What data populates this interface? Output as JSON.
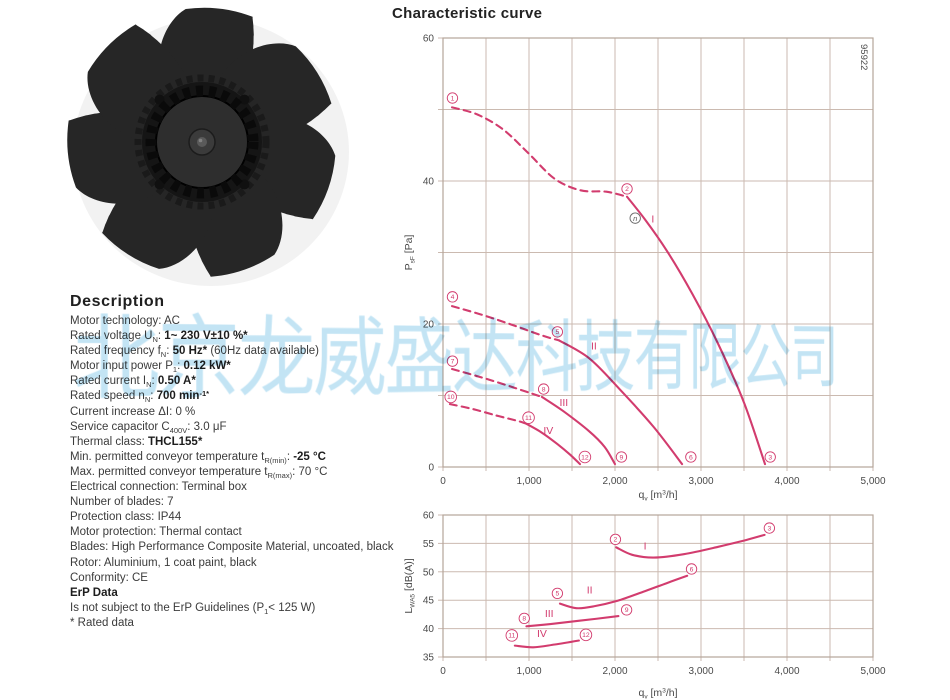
{
  "title": "Characteristic curve",
  "watermark": {
    "text": "北京龙威盛达科技有限公司",
    "color": "#9ed4ee"
  },
  "product_image": {
    "name": "axial-fan-impeller",
    "blades": 7,
    "blade_color": "#262626"
  },
  "description": {
    "heading": "Description",
    "lines": [
      [
        {
          "t": "Motor technology: AC"
        }
      ],
      [
        {
          "t": "Rated voltage U"
        },
        {
          "t": "N",
          "sub": true
        },
        {
          "t": ": "
        },
        {
          "t": "1~ 230 V±10 %*",
          "b": true
        }
      ],
      [
        {
          "t": "Rated frequency f"
        },
        {
          "t": "N",
          "sub": true
        },
        {
          "t": ": "
        },
        {
          "t": "50 Hz*",
          "b": true
        },
        {
          "t": " (60Hz data available)"
        }
      ],
      [
        {
          "t": "Motor input power P"
        },
        {
          "t": "1",
          "sub": true
        },
        {
          "t": ": "
        },
        {
          "t": "0.12 kW*",
          "b": true
        }
      ],
      [
        {
          "t": "Rated current I"
        },
        {
          "t": "N",
          "sub": true
        },
        {
          "t": ": "
        },
        {
          "t": "0.50 A*",
          "b": true
        }
      ],
      [
        {
          "t": "Rated speed n"
        },
        {
          "t": "N",
          "sub": true
        },
        {
          "t": ": "
        },
        {
          "t": "700 min",
          "b": true
        },
        {
          "t": "-1*",
          "b": true,
          "sup": true
        }
      ],
      [
        {
          "t": "Current increase ΔI: 0 %"
        }
      ],
      [
        {
          "t": "Service capacitor C"
        },
        {
          "t": "400V",
          "sub": true
        },
        {
          "t": ": 3.0 μF"
        }
      ],
      [
        {
          "t": "Thermal class: "
        },
        {
          "t": "THCL155*",
          "b": true
        }
      ],
      [
        {
          "t": "Min. permitted conveyor temperature t"
        },
        {
          "t": "R(min)",
          "sub": true
        },
        {
          "t": ": "
        },
        {
          "t": "-25 °C",
          "b": true
        }
      ],
      [
        {
          "t": "Max. permitted conveyor temperature t"
        },
        {
          "t": "R(max)",
          "sub": true
        },
        {
          "t": ": 70 °C"
        }
      ],
      [
        {
          "t": "Electrical connection: Terminal box"
        }
      ],
      [
        {
          "t": "Number of blades: 7"
        }
      ],
      [
        {
          "t": "Protection class: IP44"
        }
      ],
      [
        {
          "t": "Motor protection: Thermal contact"
        }
      ],
      [
        {
          "t": "Blades: High Performance Composite Material, uncoated, black"
        }
      ],
      [
        {
          "t": "Rotor: Aluminium, 1 coat paint, black"
        }
      ],
      [
        {
          "t": "Conformity: CE"
        }
      ],
      [
        {
          "t": "ErP Data",
          "b": true
        }
      ],
      [
        {
          "t": "Is not subject to the ErP Guidelines (P"
        },
        {
          "t": "1",
          "sub": true
        },
        {
          "t": "< 125 W)"
        }
      ],
      [
        {
          "t": "* Rated data"
        }
      ]
    ]
  },
  "colors": {
    "curve": "#d23c6e",
    "grid": "#cbbab0",
    "border": "#b5a59a",
    "text": "#4a4a4a"
  },
  "chart_data": [
    {
      "type": "line",
      "id": "pressure",
      "corner_label": "95922",
      "ylabel_segments": [
        {
          "t": "P"
        },
        {
          "t": "sF",
          "sub": true
        },
        {
          "t": " [Pa]"
        }
      ],
      "xlabel_segments": [
        {
          "t": "q"
        },
        {
          "t": "v",
          "sub": true
        },
        {
          "t": " [m"
        },
        {
          "t": "3",
          "sup": true
        },
        {
          "t": "/h]"
        }
      ],
      "xlim": [
        0,
        5000
      ],
      "ylim": [
        0,
        60
      ],
      "x_grid_step": 500,
      "y_grid_step": 10,
      "x_major_ticks": [
        {
          "v": 0,
          "label": "0"
        },
        {
          "v": 1000,
          "label": "1,000"
        },
        {
          "v": 2000,
          "label": "2,000"
        },
        {
          "v": 3000,
          "label": "3,000"
        },
        {
          "v": 4000,
          "label": "4,000"
        },
        {
          "v": 5000,
          "label": "5,000"
        }
      ],
      "y_major_ticks": [
        {
          "v": 0,
          "label": "0"
        },
        {
          "v": 20,
          "label": "20"
        },
        {
          "v": 40,
          "label": "40"
        },
        {
          "v": 60,
          "label": "60"
        }
      ],
      "curves": [
        {
          "name": "I",
          "label_pos": [
            2440,
            34.2
          ],
          "dashed": [
            [
              105,
              50.3
            ],
            [
              400,
              49.3
            ],
            [
              700,
              47.2
            ],
            [
              1000,
              43.8
            ],
            [
              1300,
              40.3
            ],
            [
              1600,
              38.7
            ],
            [
              1900,
              38.5
            ],
            [
              2140,
              37.8
            ]
          ],
          "solid": [
            [
              2140,
              37.8
            ],
            [
              2350,
              34.6
            ],
            [
              2600,
              30.3
            ],
            [
              2900,
              24.2
            ],
            [
              3200,
              17.2
            ],
            [
              3500,
              9.0
            ],
            [
              3744,
              0.4
            ]
          ],
          "markers": [
            {
              "n": "1",
              "pos": [
                110,
                51.6
              ]
            },
            {
              "n": "2",
              "pos": [
                2140,
                38.9
              ]
            },
            {
              "n": "3",
              "pos": [
                3805,
                1.4
              ]
            }
          ],
          "special_marker": {
            "glyph": "n",
            "pos": [
              2235,
              34.8
            ]
          }
        },
        {
          "name": "II",
          "label_pos": [
            1755,
            16.4
          ],
          "dashed": [
            [
              105,
              22.5
            ],
            [
              450,
              21.3
            ],
            [
              800,
              19.9
            ],
            [
              1150,
              18.4
            ],
            [
              1350,
              17.7
            ]
          ],
          "solid": [
            [
              1350,
              17.7
            ],
            [
              1700,
              15.2
            ],
            [
              2060,
              10.8
            ],
            [
              2450,
              5.6
            ],
            [
              2780,
              0.4
            ]
          ],
          "markers": [
            {
              "n": "4",
              "pos": [
                110,
                23.8
              ]
            },
            {
              "n": "5",
              "pos": [
                1330,
                18.9
              ]
            },
            {
              "n": "6",
              "pos": [
                2882,
                1.4
              ]
            }
          ]
        },
        {
          "name": "III",
          "label_pos": [
            1405,
            8.5
          ],
          "dashed": [
            [
              105,
              13.7
            ],
            [
              400,
              12.7
            ],
            [
              700,
              11.6
            ],
            [
              1000,
              10.4
            ],
            [
              1150,
              9.8
            ]
          ],
          "solid": [
            [
              1150,
              9.8
            ],
            [
              1400,
              7.8
            ],
            [
              1700,
              5.0
            ],
            [
              1880,
              2.8
            ],
            [
              2000,
              0.4
            ]
          ],
          "markers": [
            {
              "n": "7",
              "pos": [
                110,
                14.8
              ]
            },
            {
              "n": "8",
              "pos": [
                1170,
                10.9
              ]
            },
            {
              "n": "9",
              "pos": [
                2075,
                1.4
              ]
            }
          ]
        },
        {
          "name": "IV",
          "label_pos": [
            1225,
            4.6
          ],
          "dashed": [
            [
              81,
              8.8
            ],
            [
              350,
              8.1
            ],
            [
              620,
              7.2
            ],
            [
              850,
              6.5
            ],
            [
              960,
              6.1
            ]
          ],
          "solid": [
            [
              960,
              6.1
            ],
            [
              1150,
              4.8
            ],
            [
              1330,
              3.2
            ],
            [
              1480,
              1.7
            ],
            [
              1593,
              0.4
            ]
          ],
          "markers": [
            {
              "n": "10",
              "pos": [
                90,
                9.8
              ]
            },
            {
              "n": "11",
              "pos": [
                995,
                6.9
              ]
            },
            {
              "n": "12",
              "pos": [
                1650,
                1.4
              ]
            }
          ]
        }
      ]
    },
    {
      "type": "line",
      "id": "noise",
      "ylabel_segments": [
        {
          "t": "L"
        },
        {
          "t": "WA5",
          "sub": true
        },
        {
          "t": " [dB(A)]"
        }
      ],
      "xlabel_segments": [
        {
          "t": "q"
        },
        {
          "t": "v",
          "sub": true
        },
        {
          "t": " [m"
        },
        {
          "t": "3",
          "sup": true
        },
        {
          "t": "/h]"
        }
      ],
      "xlim": [
        0,
        5000
      ],
      "ylim": [
        35,
        60
      ],
      "x_grid_step": 500,
      "y_grid_step": 5,
      "x_major_ticks": [
        {
          "v": 0,
          "label": "0"
        },
        {
          "v": 1000,
          "label": "1,000"
        },
        {
          "v": 2000,
          "label": "2,000"
        },
        {
          "v": 3000,
          "label": "3,000"
        },
        {
          "v": 4000,
          "label": "4,000"
        },
        {
          "v": 5000,
          "label": "5,000"
        }
      ],
      "y_major_ticks": [
        {
          "v": 35,
          "label": "35"
        },
        {
          "v": 40,
          "label": "40"
        },
        {
          "v": 45,
          "label": "45"
        },
        {
          "v": 50,
          "label": "50"
        },
        {
          "v": 55,
          "label": "55"
        },
        {
          "v": 60,
          "label": "60"
        }
      ],
      "curves": [
        {
          "name": "I",
          "label_pos": [
            2350,
            53.9
          ],
          "solid": [
            [
              2015,
              54.3
            ],
            [
              2200,
              53.0
            ],
            [
              2450,
              52.5
            ],
            [
              2800,
              53.1
            ],
            [
              3200,
              54.4
            ],
            [
              3500,
              55.5
            ],
            [
              3740,
              56.5
            ]
          ],
          "markers": [
            {
              "n": "2",
              "pos": [
                2005,
                55.7
              ]
            },
            {
              "n": "3",
              "pos": [
                3795,
                57.7
              ]
            }
          ]
        },
        {
          "name": "II",
          "label_pos": [
            1705,
            46.2
          ],
          "solid": [
            [
              1360,
              44.4
            ],
            [
              1550,
              43.6
            ],
            [
              1750,
              43.9
            ],
            [
              2030,
              44.9
            ],
            [
              2350,
              46.6
            ],
            [
              2600,
              48.0
            ],
            [
              2840,
              49.3
            ]
          ],
          "markers": [
            {
              "n": "5",
              "pos": [
                1330,
                46.2
              ]
            },
            {
              "n": "6",
              "pos": [
                2890,
                50.5
              ]
            }
          ]
        },
        {
          "name": "III",
          "label_pos": [
            1235,
            42.0
          ],
          "solid": [
            [
              970,
              40.4
            ],
            [
              1250,
              40.8
            ],
            [
              1600,
              41.4
            ],
            [
              2040,
              42.2
            ]
          ],
          "markers": [
            {
              "n": "8",
              "pos": [
                945,
                41.8
              ]
            },
            {
              "n": "9",
              "pos": [
                2135,
                43.3
              ]
            }
          ]
        },
        {
          "name": "IV",
          "label_pos": [
            1150,
            38.5
          ],
          "solid": [
            [
              835,
              37.0
            ],
            [
              1050,
              36.7
            ],
            [
              1300,
              37.2
            ],
            [
              1580,
              37.9
            ]
          ],
          "markers": [
            {
              "n": "11",
              "pos": [
                800,
                38.8
              ]
            },
            {
              "n": "12",
              "pos": [
                1662,
                38.9
              ]
            }
          ]
        }
      ]
    }
  ]
}
